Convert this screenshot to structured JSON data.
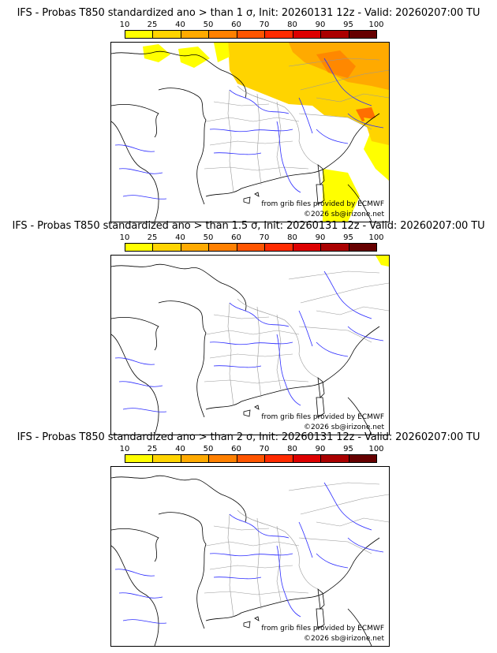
{
  "panels": [
    {
      "title": "IFS - Probas T850  standardized ano > than 1 σ, Init: 20260131 12z - Valid: 20260207:00 TU"
    },
    {
      "title": "IFS - Probas T850  standardized ano > than 1.5 σ, Init: 20260131 12z - Valid: 20260207:00 TU"
    },
    {
      "title": "IFS - Probas T850  standardized ano > than 2 σ, Init: 20260131 12z - Valid: 20260207:00 TU"
    }
  ],
  "legend": {
    "ticks": [
      "10",
      "25",
      "40",
      "50",
      "60",
      "70",
      "80",
      "90",
      "95",
      "100"
    ],
    "colors": [
      "#ffff00",
      "#ffd400",
      "#ffaa00",
      "#ff8000",
      "#ff5500",
      "#ff2b00",
      "#dd0000",
      "#aa0000",
      "#660000"
    ]
  },
  "credits": {
    "source": "from grib files provided by ECMWF",
    "copyright": "©2026 sb@irizone.net"
  }
}
